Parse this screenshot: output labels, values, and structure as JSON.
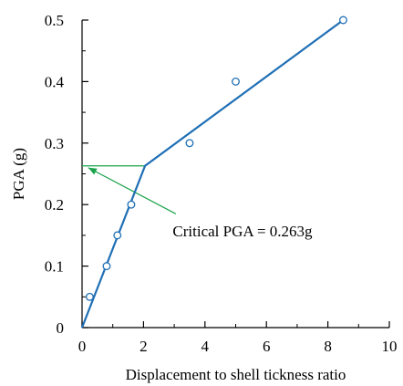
{
  "chart_data": {
    "type": "scatter",
    "xlabel": "Displacement to shell tickness ratio",
    "ylabel": "PGA (g)",
    "xlim": [
      0,
      10
    ],
    "ylim": [
      0,
      0.5
    ],
    "x_ticks": [
      0,
      2,
      4,
      6,
      8,
      10
    ],
    "y_ticks": [
      0,
      0.1,
      0.2,
      0.3,
      0.4,
      0.5
    ],
    "x_tick_labels": [
      "0",
      "2",
      "4",
      "6",
      "8",
      "10"
    ],
    "y_tick_labels": [
      "0",
      "0.1",
      "0.2",
      "0.3",
      "0.4",
      "0.5"
    ],
    "grid": false,
    "series": [
      {
        "kind": "points",
        "marker": "open-circle",
        "points": [
          {
            "x": 0.25,
            "y": 0.05
          },
          {
            "x": 0.8,
            "y": 0.1
          },
          {
            "x": 1.15,
            "y": 0.15
          },
          {
            "x": 1.6,
            "y": 0.2
          },
          {
            "x": 3.5,
            "y": 0.3
          },
          {
            "x": 5.0,
            "y": 0.4
          },
          {
            "x": 8.5,
            "y": 0.5
          }
        ]
      },
      {
        "kind": "fit-line",
        "points": [
          {
            "x": 0.0,
            "y": 0.0
          },
          {
            "x": 2.05,
            "y": 0.263
          },
          {
            "x": 8.5,
            "y": 0.5
          }
        ]
      }
    ],
    "annotation": {
      "text": "Critical PGA = 0.263g",
      "critical_y": 0.263,
      "knee_x": 2.05,
      "arrow_tail": {
        "x": 3.05,
        "y": 0.185
      },
      "arrow_head": {
        "x": 0.2,
        "y": 0.26
      },
      "text_anchor": {
        "x": 2.95,
        "y": 0.148
      }
    },
    "colors": {
      "data": "#1f6fb5",
      "fit_line": "#1f6fb5",
      "annotation": "#1aa34a",
      "axis": "#000000"
    }
  }
}
